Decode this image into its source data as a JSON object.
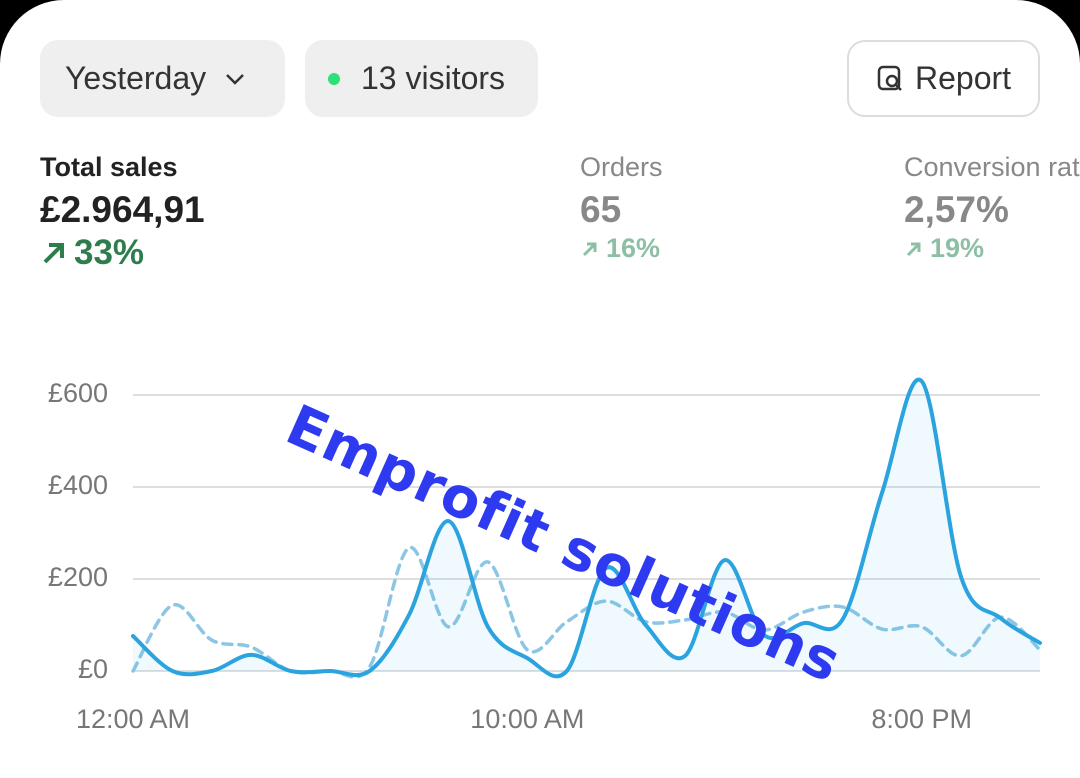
{
  "toolbar": {
    "date_range": "Yesterday",
    "visitors": "13 visitors",
    "report": "Report"
  },
  "metrics": [
    {
      "label": "Total sales",
      "value": "£2.964,91",
      "change": "33%"
    },
    {
      "label": "Orders",
      "value": "65",
      "change": "16%"
    },
    {
      "label": "Conversion rate",
      "value": "2,57%",
      "change": "19%"
    }
  ],
  "watermark": "Emprofit solutions",
  "chart_data": {
    "type": "line",
    "categories": [
      "12:00 AM",
      null,
      null,
      null,
      null,
      null,
      null,
      null,
      null,
      null,
      "10:00 AM",
      null,
      null,
      null,
      null,
      null,
      null,
      null,
      null,
      null,
      "8:00 PM",
      null,
      null,
      null
    ],
    "series": [
      {
        "color": "#2aa3de",
        "dashed": false,
        "fill": true,
        "values": [
          76,
          0,
          0,
          35,
          0,
          0,
          0,
          122,
          326,
          96,
          28,
          0,
          224,
          100,
          33,
          241,
          78,
          104,
          113,
          389,
          630,
          204,
          115,
          61
        ]
      },
      {
        "color": "#8cc6e4",
        "dashed": true,
        "fill": false,
        "values": [
          0,
          143,
          67,
          52,
          0,
          0,
          9,
          268,
          96,
          237,
          46,
          107,
          152,
          107,
          111,
          128,
          89,
          128,
          139,
          91,
          96,
          33,
          117,
          46
        ]
      }
    ],
    "ylim": [
      0,
      600
    ],
    "yticks": [
      {
        "value": 0,
        "label": "£0"
      },
      {
        "value": 200,
        "label": "£200"
      },
      {
        "value": 400,
        "label": "£400"
      },
      {
        "value": 600,
        "label": "£600"
      }
    ],
    "grid": true
  }
}
